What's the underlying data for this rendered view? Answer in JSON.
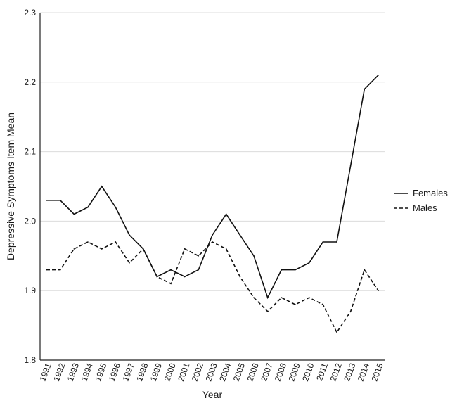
{
  "chart_data": {
    "type": "line",
    "title": "",
    "xlabel": "Year",
    "ylabel": "Depressive Symptoms Item Mean",
    "ylim": [
      1.8,
      2.3
    ],
    "yticks": [
      "1.8",
      "1.9",
      "2.0",
      "2.1",
      "2.2",
      "2.3"
    ],
    "grid": "horizontal",
    "legend_position": "right",
    "categories": [
      "1991",
      "1992",
      "1993",
      "1994",
      "1995",
      "1996",
      "1997",
      "1998",
      "1999",
      "2000",
      "2001",
      "2002",
      "2003",
      "2004",
      "2005",
      "2006",
      "2007",
      "2008",
      "2009",
      "2010",
      "2011",
      "2012",
      "2013",
      "2014",
      "2015"
    ],
    "series": [
      {
        "name": "Females",
        "line_style": "solid",
        "color": "#111111",
        "values": [
          2.03,
          2.03,
          2.01,
          2.02,
          2.05,
          2.02,
          1.98,
          1.96,
          1.92,
          1.93,
          1.92,
          1.93,
          1.98,
          2.01,
          1.98,
          1.95,
          1.89,
          1.93,
          1.93,
          1.94,
          1.97,
          1.97,
          2.08,
          2.19,
          2.21
        ]
      },
      {
        "name": "Males",
        "line_style": "dashed",
        "color": "#111111",
        "values": [
          1.93,
          1.93,
          1.96,
          1.97,
          1.96,
          1.97,
          1.94,
          1.96,
          1.92,
          1.91,
          1.96,
          1.95,
          1.97,
          1.96,
          1.92,
          1.89,
          1.87,
          1.89,
          1.88,
          1.89,
          1.88,
          1.84,
          1.87,
          1.93,
          1.9
        ]
      }
    ]
  }
}
